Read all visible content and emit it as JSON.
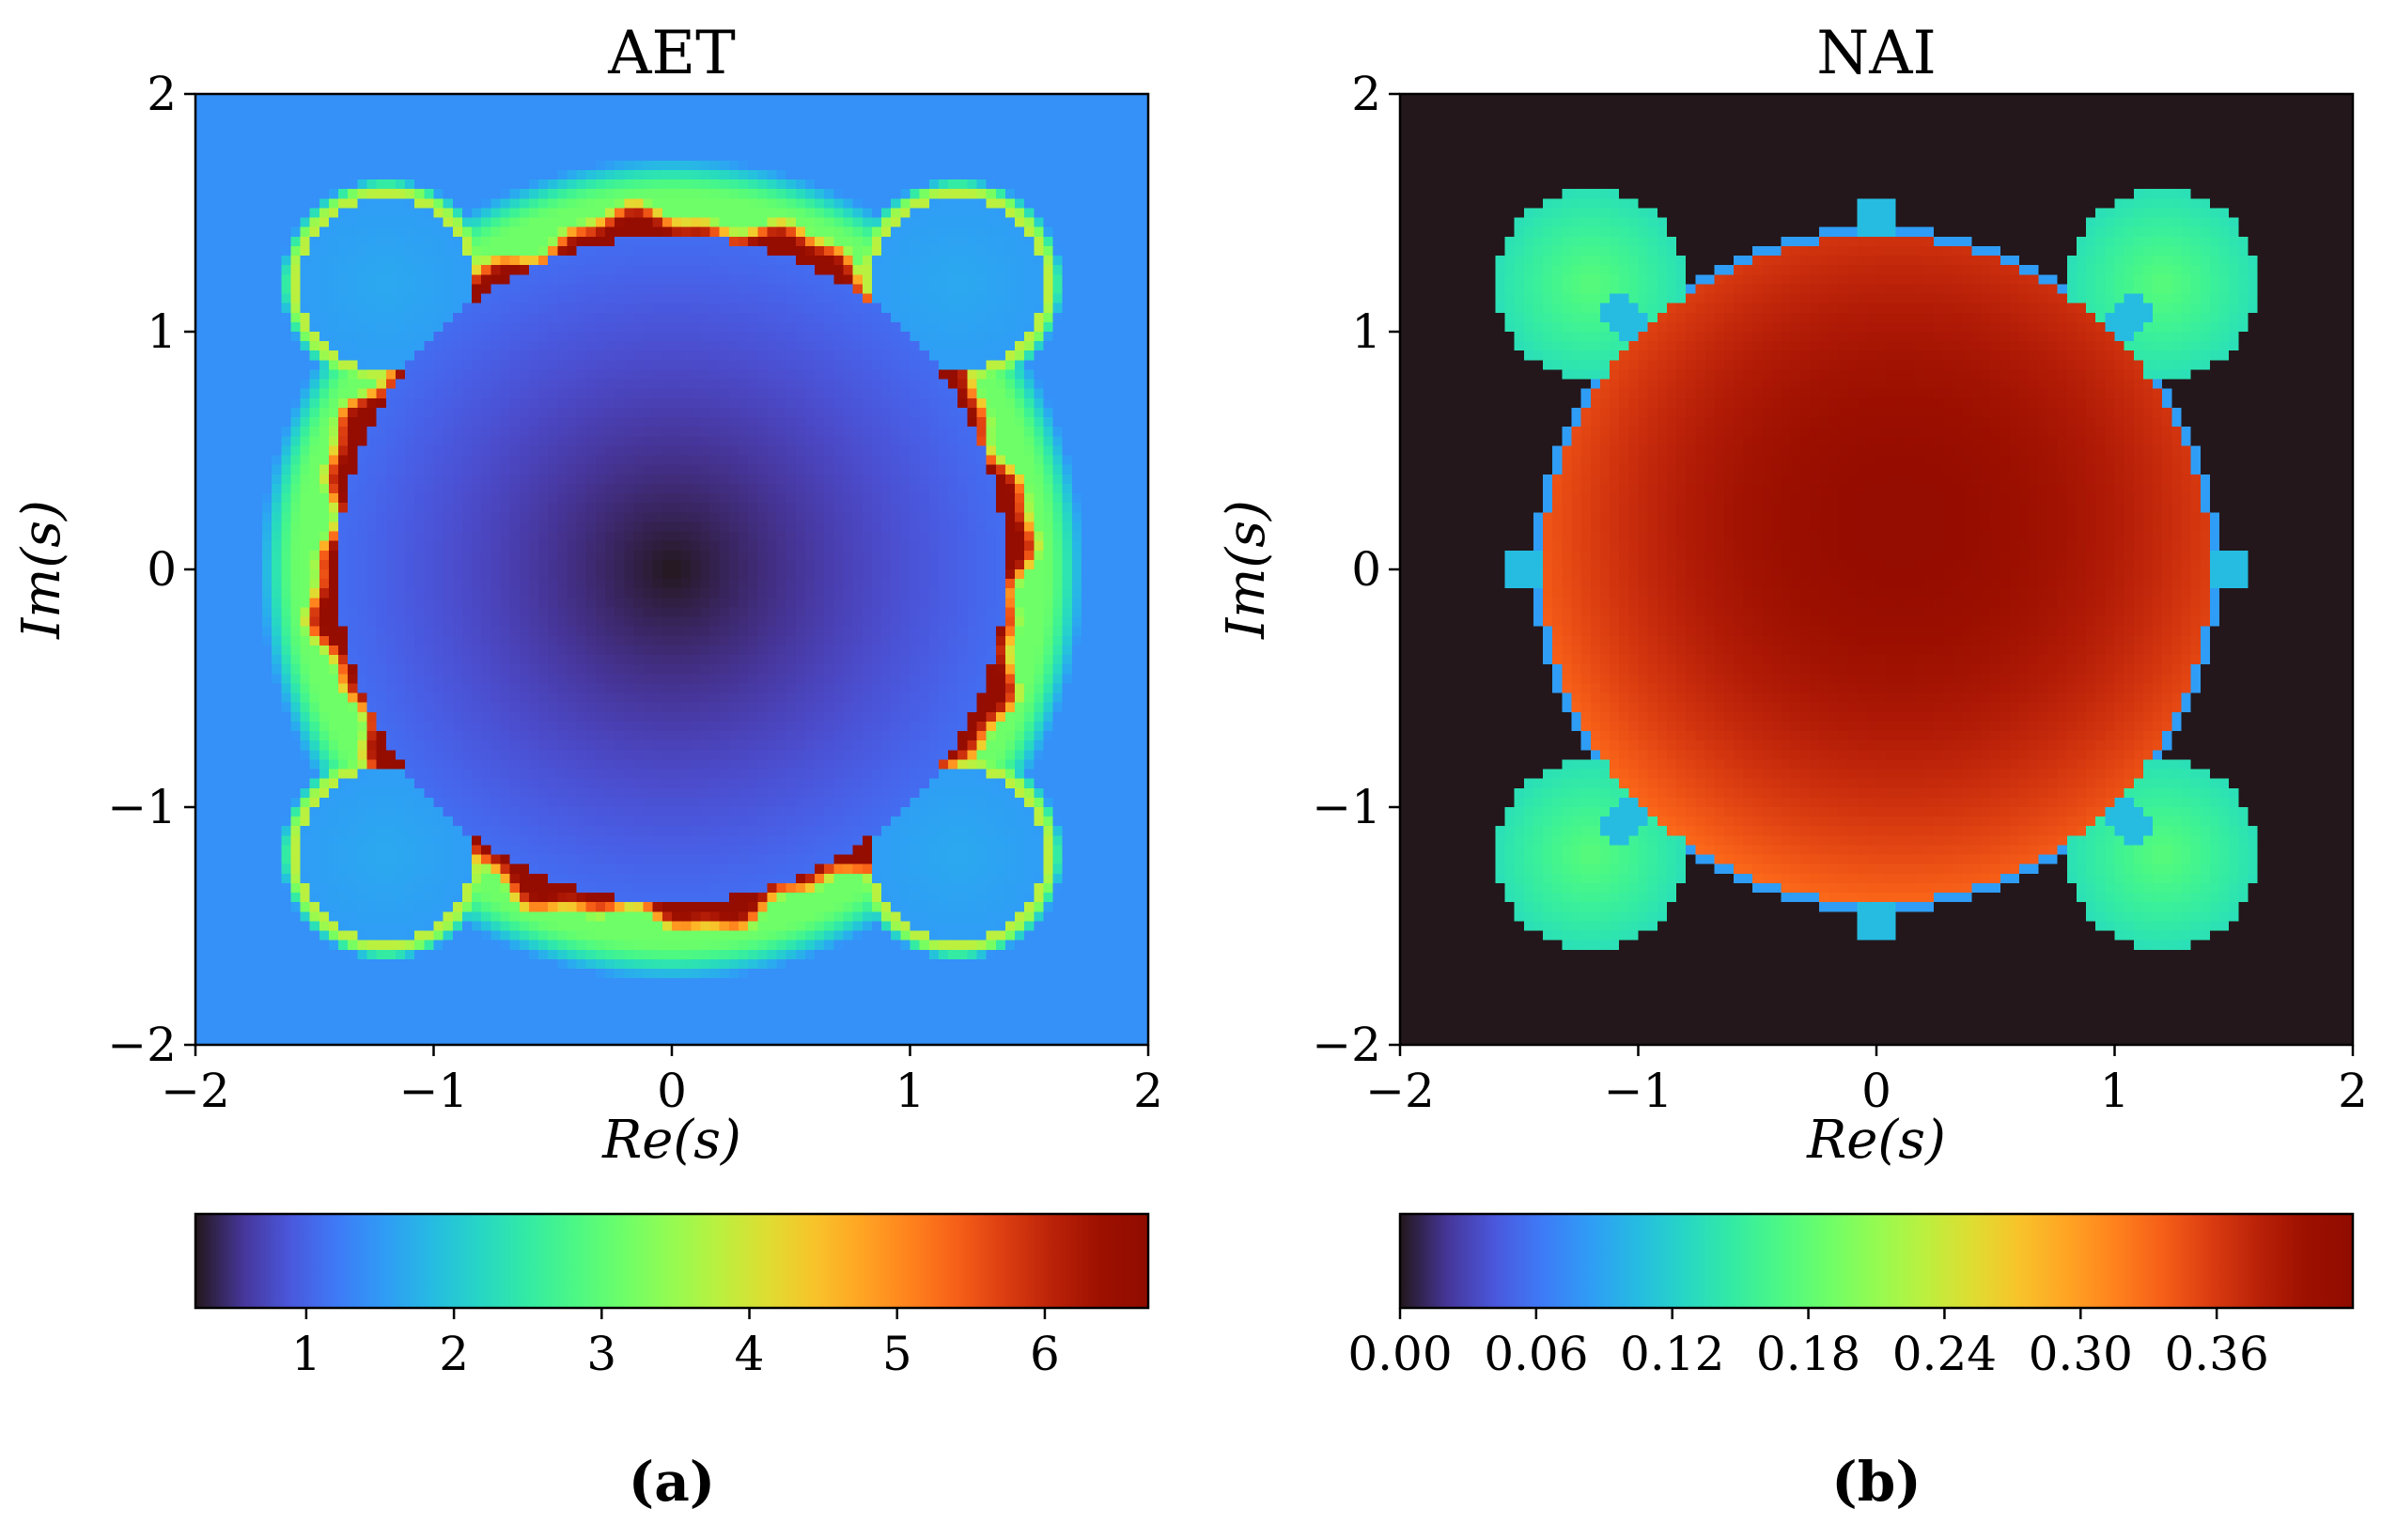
{
  "figure": {
    "panels": [
      "(a)",
      "(b)"
    ]
  },
  "chart_data": [
    {
      "type": "heatmap",
      "title": "AET",
      "xlabel": "Re(s)",
      "ylabel": "Im(s)",
      "xlim": [
        -2,
        2
      ],
      "ylim": [
        -2,
        2
      ],
      "xticks": [
        -2,
        -1,
        0,
        1,
        2
      ],
      "yticks": [
        -2,
        -1,
        0,
        1,
        2
      ],
      "xtick_labels": [
        "−2",
        "−1",
        "0",
        "1",
        "2"
      ],
      "ytick_labels": [
        "−2",
        "−1",
        "0",
        "1",
        "2"
      ],
      "colormap": "turbo",
      "colorbar": {
        "orientation": "horizontal",
        "vmin": 0.25,
        "vmax": 6.7,
        "ticks": [
          1,
          2,
          3,
          4,
          5,
          6
        ],
        "tick_labels": [
          "1",
          "2",
          "3",
          "4",
          "5",
          "6"
        ]
      },
      "description_values": {
        "center": 0.25,
        "main_disk_edge": 1.0,
        "boundary_max": 6.7,
        "far_field": 1.4
      }
    },
    {
      "type": "heatmap",
      "title": "NAI",
      "xlabel": "Re(s)",
      "ylabel": "Im(s)",
      "xlim": [
        -2,
        2
      ],
      "ylim": [
        -2,
        2
      ],
      "xticks": [
        -2,
        -1,
        0,
        1,
        2
      ],
      "yticks": [
        -2,
        -1,
        0,
        1,
        2
      ],
      "xtick_labels": [
        "−2",
        "−1",
        "0",
        "1",
        "2"
      ],
      "ytick_labels": [
        "−2",
        "−1",
        "0",
        "1",
        "2"
      ],
      "colormap": "turbo",
      "colorbar": {
        "orientation": "horizontal",
        "vmin": 0.0,
        "vmax": 0.42,
        "ticks": [
          0.0,
          0.06,
          0.12,
          0.18,
          0.24,
          0.3,
          0.36
        ],
        "tick_labels": [
          "0.00",
          "0.06",
          "0.12",
          "0.18",
          "0.24",
          "0.30",
          "0.36"
        ]
      },
      "description_values": {
        "outside": 0.0,
        "main_disk_center": 0.41,
        "main_disk_edge": 0.33,
        "side_disks": 0.18
      }
    }
  ]
}
